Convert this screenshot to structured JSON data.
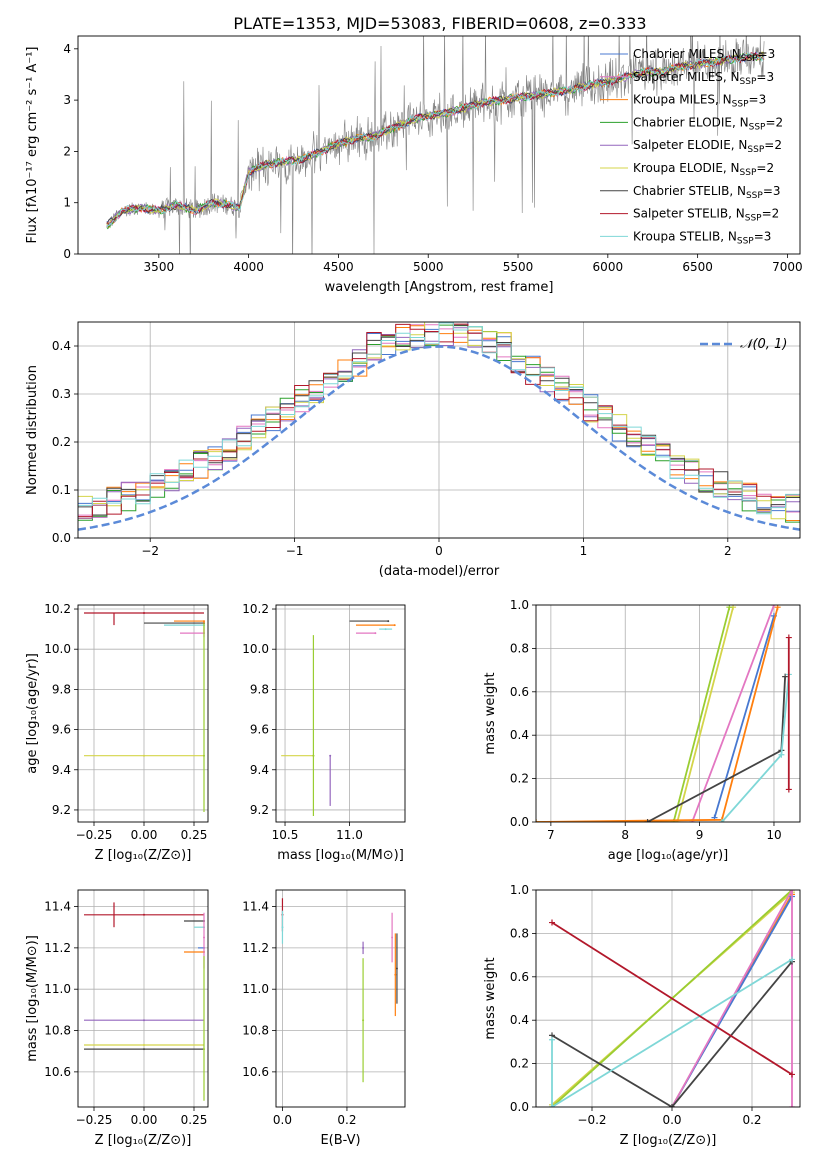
{
  "figure_title": "PLATE=1353, MJD=53083, FIBERID=0608, z=0.333",
  "legend_spectrum": [
    {
      "base": "Chabrier MILES, N",
      "sub": "SSP",
      "tail": "=3",
      "color": "#4878d0"
    },
    {
      "base": "Salpeter MILES, N",
      "sub": "SSP",
      "tail": "=3",
      "color": "#e377c2"
    },
    {
      "base": "Kroupa MILES, N",
      "sub": "SSP",
      "tail": "=3",
      "color": "#ff7f0e"
    },
    {
      "base": "Chabrier ELODIE, N",
      "sub": "SSP",
      "tail": "=2",
      "color": "#2ca02c"
    },
    {
      "base": "Salpeter ELODIE, N",
      "sub": "SSP",
      "tail": "=2",
      "color": "#9467bd"
    },
    {
      "base": "Kroupa ELODIE, N",
      "sub": "SSP",
      "tail": "=2",
      "color": "#d4d44a"
    },
    {
      "base": "Chabrier STELIB, N",
      "sub": "SSP",
      "tail": "=3",
      "color": "#444444"
    },
    {
      "base": "Salpeter STELIB, N",
      "sub": "SSP",
      "tail": "=2",
      "color": "#b2182b"
    },
    {
      "base": "Kroupa STELIB, N",
      "sub": "SSP",
      "tail": "=3",
      "color": "#7fd7d7"
    }
  ],
  "chart_data": [
    {
      "id": "spectrum",
      "type": "line",
      "xlabel": "wavelength [Angstrom, rest frame]",
      "ylabel": "Flux [fλ10⁻¹⁷ erg cm⁻² s⁻¹ A⁻¹]",
      "xlim": [
        3050,
        7070
      ],
      "ylim": [
        0,
        4.25
      ],
      "xticks": [
        3500,
        4000,
        4500,
        5000,
        5500,
        6000,
        6500,
        7000
      ],
      "yticks": [
        0,
        1,
        2,
        3,
        4
      ],
      "grid": false,
      "legend": "top-right",
      "data_color": "#808080",
      "continuum_x": [
        3210,
        3300,
        3400,
        3500,
        3600,
        3700,
        3800,
        3900,
        3950,
        4000,
        4100,
        4200,
        4300,
        4400,
        4500,
        4600,
        4700,
        4800,
        4900,
        5000,
        5100,
        5200,
        5300,
        5400,
        5500,
        5600,
        5700,
        5800,
        5900,
        6000,
        6100,
        6200,
        6300,
        6400,
        6500,
        6600,
        6700,
        6800,
        6900
      ],
      "continuum_y": [
        0.55,
        0.85,
        0.9,
        0.85,
        0.95,
        0.85,
        1.0,
        0.95,
        0.9,
        1.6,
        1.75,
        1.8,
        1.85,
        2.0,
        2.15,
        2.25,
        2.3,
        2.45,
        2.6,
        2.7,
        2.75,
        2.85,
        2.95,
        3.0,
        3.05,
        3.1,
        3.15,
        3.2,
        3.3,
        3.35,
        3.45,
        3.55,
        3.55,
        3.65,
        3.7,
        3.75,
        3.8,
        3.85,
        3.85
      ],
      "data_range": [
        3210,
        6870
      ]
    },
    {
      "id": "residuals",
      "type": "line",
      "xlabel": "(data-model)/error",
      "ylabel": "Normed distribution",
      "xlim": [
        -2.5,
        2.5
      ],
      "ylim": [
        0,
        0.45
      ],
      "xticks": [
        -2,
        -1,
        0,
        1,
        2
      ],
      "yticks": [
        0.0,
        0.1,
        0.2,
        0.3,
        0.4
      ],
      "grid": true,
      "legend": "top-right",
      "gauss_label": "𝒩(0, 1)",
      "gauss_color": "#5b8ad8",
      "bin_width": 0.1
    },
    {
      "id": "age_vs_Z",
      "type": "scatter",
      "xlabel": "Z [log₁₀(Z/Z⊙)]",
      "ylabel": "age  [log₁₀(age/yr)]",
      "xlim": [
        -0.33,
        0.32
      ],
      "ylim": [
        9.14,
        10.22
      ],
      "xticks": [
        -0.25,
        0.0,
        0.25
      ],
      "yticks": [
        9.2,
        9.4,
        9.6,
        9.8,
        10.0,
        10.2
      ],
      "grid": true,
      "points": [
        {
          "x": 0.0,
          "y": 10.18,
          "xerr": [
            0.3,
            0.3
          ],
          "yerr": [
            0.0,
            0.0
          ],
          "color": "#b2182b",
          "cross_x": -0.15,
          "cross_y_err": [
            0.06,
            0.0
          ]
        },
        {
          "x": 0.3,
          "y": 10.13,
          "xerr": [
            0.3,
            0.0
          ],
          "yerr": [
            0.0,
            0.0
          ],
          "color": "#444444"
        },
        {
          "x": 0.3,
          "y": 10.14,
          "xerr": [
            0.15,
            0.0
          ],
          "yerr": [
            0.06,
            0.0
          ],
          "color": "#ff7f0e"
        },
        {
          "x": 0.3,
          "y": 10.08,
          "xerr": [
            0.12,
            0.0
          ],
          "yerr": [
            0.02,
            0.02
          ],
          "color": "#e377c2"
        },
        {
          "x": 0.3,
          "y": 10.12,
          "xerr": [
            0.2,
            0.0
          ],
          "yerr": [
            0.02,
            0.0
          ],
          "color": "#7fd7d7"
        },
        {
          "x": 0.0,
          "y": 9.47,
          "xerr": [
            0.3,
            0.3
          ],
          "yerr": [
            0.0,
            0.0
          ],
          "color": "#d4d44a"
        },
        {
          "x": 0.3,
          "y": 9.47,
          "xerr": [
            0.0,
            0.0
          ],
          "yerr": [
            0.28,
            0.66
          ],
          "color": "#9acd32"
        }
      ]
    },
    {
      "id": "age_vs_mass",
      "type": "scatter",
      "xlabel": "mass [log₁₀(M/M⊙)]",
      "ylabel": "",
      "xlim": [
        10.43,
        11.43
      ],
      "ylim": [
        9.14,
        10.22
      ],
      "xticks": [
        10.5,
        11.0
      ],
      "yticks": [
        9.2,
        9.4,
        9.6,
        9.8,
        10.0,
        10.2
      ],
      "grid": true,
      "points": [
        {
          "x": 11.3,
          "y": 10.14,
          "xerr": [
            0.3,
            0.0
          ],
          "color": "#444444"
        },
        {
          "x": 11.35,
          "y": 10.12,
          "xerr": [
            0.3,
            0.0
          ],
          "color": "#ff7f0e"
        },
        {
          "x": 11.2,
          "y": 10.08,
          "xerr": [
            0.15,
            0.0
          ],
          "color": "#e377c2"
        },
        {
          "x": 11.28,
          "y": 10.1,
          "xerr": [
            0.05,
            0.05
          ],
          "color": "#7fd7d7"
        },
        {
          "x": 10.85,
          "y": 9.47,
          "xerr": [
            0.0,
            0.0
          ],
          "yerr": [
            0.25,
            0.0
          ],
          "color": "#9467bd"
        },
        {
          "x": 10.72,
          "y": 9.47,
          "xerr": [
            0.25,
            0.0
          ],
          "color": "#d4d44a"
        },
        {
          "x": 10.72,
          "y": 9.47,
          "xerr": [
            0.0,
            0.0
          ],
          "yerr": [
            0.3,
            0.6
          ],
          "color": "#9acd32"
        }
      ]
    },
    {
      "id": "massweight_vs_age",
      "type": "line",
      "xlabel": "age  [log₁₀(age/yr)]",
      "ylabel": "mass weight",
      "xlim": [
        6.8,
        10.35
      ],
      "ylim": [
        0,
        1.0
      ],
      "xticks": [
        7,
        8,
        9,
        10
      ],
      "yticks": [
        0.0,
        0.2,
        0.4,
        0.6,
        0.8,
        1.0
      ],
      "grid": true,
      "series": [
        {
          "color": "#d4d44a",
          "x": [
            6.8,
            8.7,
            9.45
          ],
          "y": [
            0.0,
            0.0,
            0.99
          ]
        },
        {
          "color": "#9acd32",
          "x": [
            8.65,
            9.4
          ],
          "y": [
            0.0,
            0.99
          ]
        },
        {
          "color": "#e377c2",
          "x": [
            8.9,
            10.0
          ],
          "y": [
            0.0,
            1.0
          ]
        },
        {
          "color": "#4878d0",
          "x": [
            9.2,
            10.0
          ],
          "y": [
            0.02,
            0.95
          ]
        },
        {
          "color": "#ff7f0e",
          "x": [
            6.8,
            9.3,
            10.05
          ],
          "y": [
            0.0,
            0.01,
            0.99
          ]
        },
        {
          "color": "#444444",
          "x": [
            8.3,
            10.1,
            10.15
          ],
          "y": [
            0.0,
            0.33,
            0.67
          ]
        },
        {
          "color": "#7fd7d7",
          "x": [
            9.3,
            10.1,
            10.2
          ],
          "y": [
            0.0,
            0.31,
            0.68
          ]
        },
        {
          "color": "#b2182b",
          "x": [
            10.2,
            10.2
          ],
          "y": [
            0.15,
            0.85
          ]
        }
      ]
    },
    {
      "id": "mass_vs_Z",
      "type": "scatter",
      "xlabel": "Z [log₁₀(Z/Z⊙)]",
      "ylabel": "mass [log₁₀(M/M⊙)]",
      "xlim": [
        -0.33,
        0.32
      ],
      "ylim": [
        10.43,
        11.48
      ],
      "xticks": [
        -0.25,
        0.0,
        0.25
      ],
      "yticks": [
        10.6,
        10.8,
        11.0,
        11.2,
        11.4
      ],
      "grid": true,
      "points": [
        {
          "x": 0.0,
          "y": 11.36,
          "xerr": [
            0.3,
            0.3
          ],
          "color": "#b2182b",
          "cross_x": -0.15,
          "cross_y_err": [
            0.06,
            0.06
          ]
        },
        {
          "x": 0.3,
          "y": 11.33,
          "xerr": [
            0.1,
            0.0
          ],
          "color": "#444444"
        },
        {
          "x": 0.3,
          "y": 11.3,
          "xerr": [
            0.05,
            0.0
          ],
          "color": "#7fd7d7"
        },
        {
          "x": 0.3,
          "y": 11.2,
          "xerr": [
            0.03,
            0.0
          ],
          "color": "#4878d0"
        },
        {
          "x": 0.3,
          "y": 11.18,
          "xerr": [
            0.1,
            0.0
          ],
          "color": "#ff7f0e"
        },
        {
          "x": 0.3,
          "y": 11.25,
          "xerr": [
            0.0,
            0.0
          ],
          "yerr": [
            0.15,
            0.12
          ],
          "color": "#e377c2"
        },
        {
          "x": 0.0,
          "y": 10.85,
          "xerr": [
            0.3,
            0.3
          ],
          "color": "#9467bd"
        },
        {
          "x": 0.0,
          "y": 10.73,
          "xerr": [
            0.3,
            0.3
          ],
          "color": "#d4d44a"
        },
        {
          "x": 0.0,
          "y": 10.71,
          "xerr": [
            0.3,
            0.3
          ],
          "color": "#444444"
        },
        {
          "x": 0.3,
          "y": 10.71,
          "xerr": [
            0.0,
            0.0
          ],
          "yerr": [
            0.25,
            0.45
          ],
          "color": "#9acd32"
        }
      ]
    },
    {
      "id": "mass_vs_EBV",
      "type": "scatter",
      "xlabel": "E(B-V)",
      "ylabel": "",
      "xlim": [
        -0.02,
        0.38
      ],
      "ylim": [
        10.43,
        11.48
      ],
      "xticks": [
        0.0,
        0.2
      ],
      "yticks": [
        10.6,
        10.8,
        11.0,
        11.2,
        11.4
      ],
      "grid": true,
      "points": [
        {
          "x": 0.0,
          "y": 11.36,
          "yerr": [
            0.08,
            0.08
          ],
          "color": "#b2182b"
        },
        {
          "x": 0.0,
          "y": 11.3,
          "yerr": [
            0.08,
            0.08
          ],
          "color": "#7fd7d7"
        },
        {
          "x": 0.25,
          "y": 11.2,
          "yerr": [
            0.03,
            0.03
          ],
          "color": "#9467bd"
        },
        {
          "x": 0.25,
          "y": 10.85,
          "yerr": [
            0.3,
            0.3
          ],
          "color": "#9acd32"
        },
        {
          "x": 0.34,
          "y": 11.25,
          "yerr": [
            0.12,
            0.12
          ],
          "color": "#e377c2"
        },
        {
          "x": 0.35,
          "y": 11.07,
          "yerr": [
            0.2,
            0.2
          ],
          "color": "#ff7f0e"
        },
        {
          "x": 0.355,
          "y": 11.1,
          "yerr": [
            0.17,
            0.17
          ],
          "color": "#444444"
        }
      ]
    },
    {
      "id": "massweight_vs_Z",
      "type": "line",
      "xlabel": "Z [log₁₀(Z/Z⊙)]",
      "ylabel": "mass weight",
      "xlim": [
        -0.34,
        0.32
      ],
      "ylim": [
        0,
        1.0
      ],
      "xticks": [
        -0.2,
        0.0,
        0.2
      ],
      "yticks": [
        0.0,
        0.2,
        0.4,
        0.6,
        0.8,
        1.0
      ],
      "grid": true,
      "series": [
        {
          "color": "#d4d44a",
          "x": [
            -0.3,
            0.3
          ],
          "y": [
            0.01,
            0.99
          ]
        },
        {
          "color": "#9acd32",
          "x": [
            -0.3,
            0.3
          ],
          "y": [
            0.0,
            1.0
          ]
        },
        {
          "color": "#ff7f0e",
          "x": [
            0.0,
            0.3
          ],
          "y": [
            0.0,
            0.98
          ]
        },
        {
          "color": "#4878d0",
          "x": [
            0.0,
            0.3
          ],
          "y": [
            0.0,
            0.97
          ]
        },
        {
          "color": "#e377c2",
          "x": [
            0.0,
            0.3,
            0.3
          ],
          "y": [
            0.0,
            1.0,
            0.0
          ]
        },
        {
          "color": "#444444",
          "x": [
            -0.3,
            0.0,
            0.3
          ],
          "y": [
            0.33,
            0.0,
            0.67
          ]
        },
        {
          "color": "#7fd7d7",
          "x": [
            -0.3,
            -0.3,
            0.3
          ],
          "y": [
            0.31,
            0.0,
            0.68
          ]
        },
        {
          "color": "#b2182b",
          "x": [
            -0.3,
            0.3
          ],
          "y": [
            0.85,
            0.15
          ]
        }
      ]
    }
  ]
}
